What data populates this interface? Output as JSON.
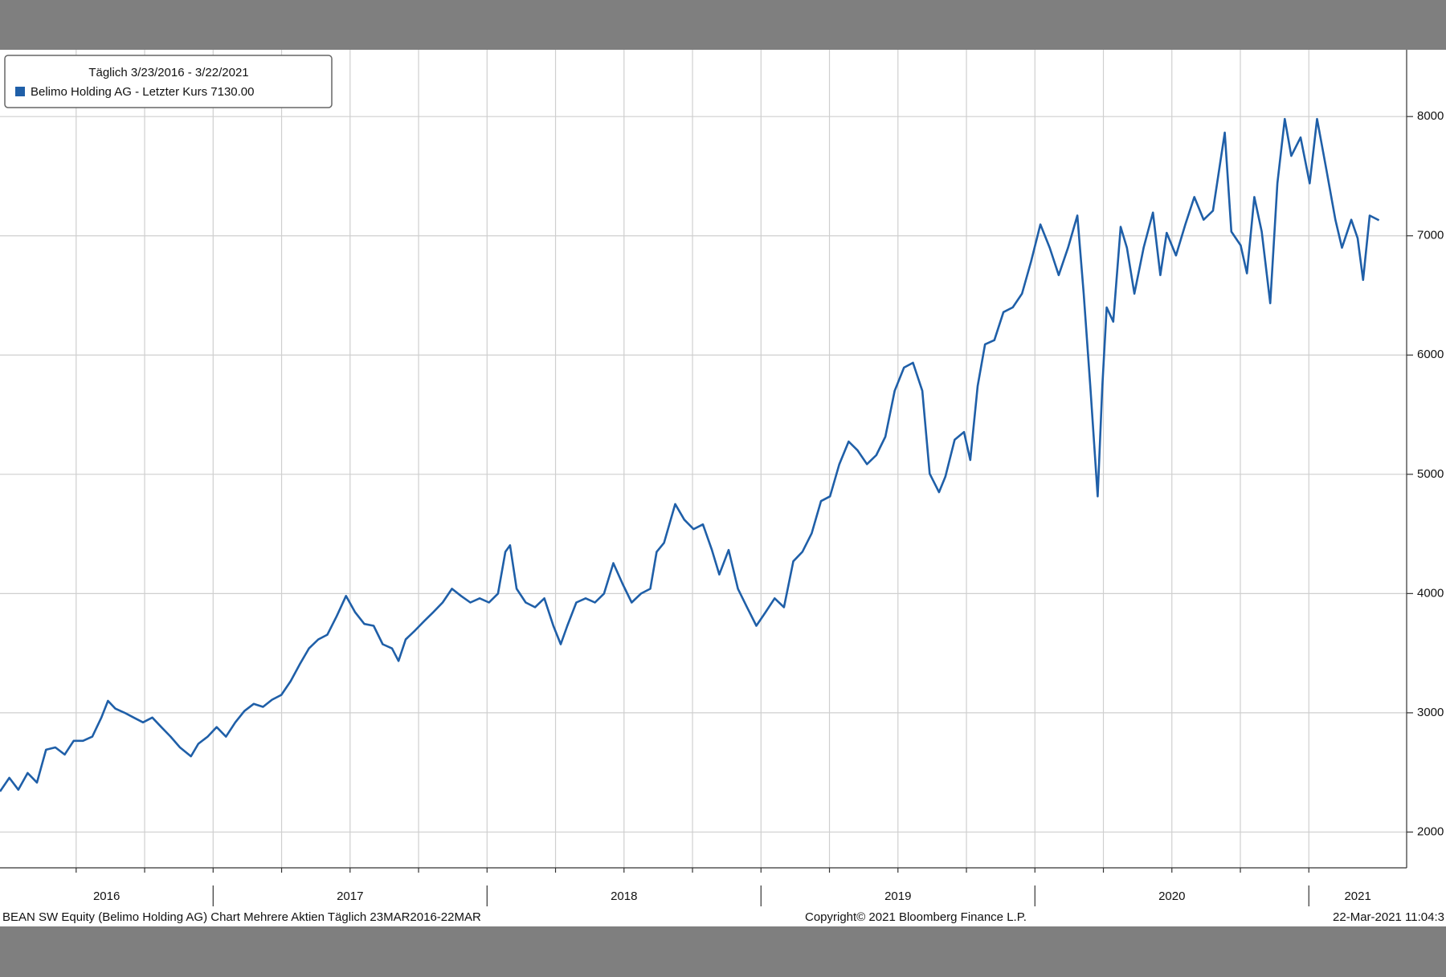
{
  "chart_data": {
    "type": "line",
    "legend_title": "Täglich 3/23/2016 - 3/22/2021",
    "footer_left": "BEAN SW Equity (Belimo Holding AG) Chart Mehrere Aktien  Täglich 23MAR2016-22MAR",
    "footer_center": "Copyright© 2021 Bloomberg Finance L.P.",
    "footer_right": "22-Mar-2021 11:04:3",
    "year_labels": [
      "2016",
      "2017",
      "2018",
      "2019",
      "2020",
      "2021"
    ],
    "year_boundaries": [
      2017,
      2018,
      2019,
      2020,
      2021
    ],
    "xlim": [
      2016.222,
      2021.357
    ],
    "xticks": [
      2016.5,
      2016.75,
      2017,
      2017.25,
      2017.5,
      2017.75,
      2018,
      2018.25,
      2018.5,
      2018.75,
      2019,
      2019.25,
      2019.5,
      2019.75,
      2020,
      2020.25,
      2020.5,
      2020.75,
      2021
    ],
    "ylim": [
      1700,
      8560
    ],
    "yticks": [
      2000,
      3000,
      4000,
      5000,
      6000,
      7000,
      8000
    ],
    "grid": true,
    "legend": "upper left",
    "x": [
      2016.222,
      2016.256,
      2016.289,
      2016.323,
      2016.357,
      2016.39,
      2016.424,
      2016.458,
      2016.491,
      2016.525,
      2016.559,
      2016.592,
      2016.616,
      2016.643,
      2016.677,
      2016.71,
      2016.744,
      2016.778,
      2016.811,
      2016.845,
      2016.879,
      2016.919,
      2016.946,
      2016.98,
      2017.013,
      2017.047,
      2017.081,
      2017.114,
      2017.148,
      2017.182,
      2017.215,
      2017.249,
      2017.283,
      2017.316,
      2017.35,
      2017.384,
      2017.417,
      2017.451,
      2017.485,
      2017.518,
      2017.552,
      2017.586,
      2017.619,
      2017.653,
      2017.677,
      2017.703,
      2017.737,
      2017.771,
      2017.804,
      2017.838,
      2017.872,
      2017.905,
      2017.939,
      2017.973,
      2018.007,
      2018.04,
      2018.067,
      2018.084,
      2018.108,
      2018.141,
      2018.175,
      2018.209,
      2018.242,
      2018.269,
      2018.293,
      2018.326,
      2018.36,
      2018.394,
      2018.427,
      2018.461,
      2018.495,
      2018.528,
      2018.562,
      2018.596,
      2018.619,
      2018.646,
      2018.687,
      2018.72,
      2018.754,
      2018.788,
      2018.821,
      2018.848,
      2018.882,
      2018.916,
      2018.949,
      2018.983,
      2019.017,
      2019.05,
      2019.084,
      2019.118,
      2019.151,
      2019.185,
      2019.219,
      2019.252,
      2019.286,
      2019.32,
      2019.353,
      2019.387,
      2019.421,
      2019.454,
      2019.488,
      2019.522,
      2019.555,
      2019.589,
      2019.616,
      2019.65,
      2019.673,
      2019.707,
      2019.741,
      2019.764,
      2019.791,
      2019.818,
      2019.852,
      2019.885,
      2019.919,
      2019.953,
      2019.986,
      2020.02,
      2020.054,
      2020.087,
      2020.121,
      2020.155,
      2020.178,
      2020.202,
      2020.229,
      2020.246,
      2020.262,
      2020.286,
      2020.313,
      2020.336,
      2020.363,
      2020.397,
      2020.431,
      2020.458,
      2020.481,
      2020.515,
      2020.549,
      2020.582,
      2020.616,
      2020.65,
      2020.693,
      2020.717,
      2020.751,
      2020.774,
      2020.801,
      2020.828,
      2020.859,
      2020.885,
      2020.912,
      2020.936,
      2020.97,
      2021.003,
      2021.03,
      2021.064,
      2021.097,
      2021.121,
      2021.155,
      2021.178,
      2021.198,
      2021.222,
      2021.256
    ],
    "series": [
      {
        "name": "Belimo Holding AG - Letzter Kurs 7130.00",
        "color": "#1f5fa8",
        "values": [
          2340,
          2455,
          2355,
          2495,
          2415,
          2690,
          2710,
          2650,
          2765,
          2765,
          2800,
          2960,
          3100,
          3035,
          3000,
          2960,
          2920,
          2960,
          2880,
          2800,
          2710,
          2635,
          2740,
          2800,
          2880,
          2800,
          2920,
          3015,
          3075,
          3050,
          3110,
          3150,
          3265,
          3405,
          3540,
          3615,
          3655,
          3810,
          3980,
          3845,
          3745,
          3730,
          3575,
          3540,
          3435,
          3615,
          3690,
          3770,
          3845,
          3925,
          4040,
          3980,
          3925,
          3960,
          3925,
          4000,
          4350,
          4405,
          4040,
          3925,
          3885,
          3960,
          3730,
          3575,
          3730,
          3925,
          3960,
          3925,
          4000,
          4255,
          4080,
          3925,
          4000,
          4040,
          4350,
          4425,
          4750,
          4620,
          4540,
          4580,
          4365,
          4160,
          4365,
          4040,
          3885,
          3730,
          3845,
          3960,
          3885,
          4270,
          4350,
          4505,
          4775,
          4815,
          5085,
          5275,
          5200,
          5085,
          5160,
          5315,
          5700,
          5895,
          5935,
          5700,
          5005,
          4850,
          4980,
          5290,
          5355,
          5120,
          5740,
          6090,
          6125,
          6360,
          6400,
          6515,
          6785,
          7095,
          6900,
          6670,
          6900,
          7170,
          6515,
          5740,
          4815,
          5740,
          6400,
          6280,
          7075,
          6900,
          6515,
          6900,
          7195,
          6670,
          7025,
          6835,
          7095,
          7325,
          7135,
          7210,
          7865,
          7035,
          6920,
          6685,
          7325,
          7035,
          6435,
          7440,
          7980,
          7670,
          7825,
          7440,
          7980,
          7555,
          7135,
          6900,
          7135,
          6980,
          6630,
          7170,
          7130
        ]
      }
    ]
  }
}
